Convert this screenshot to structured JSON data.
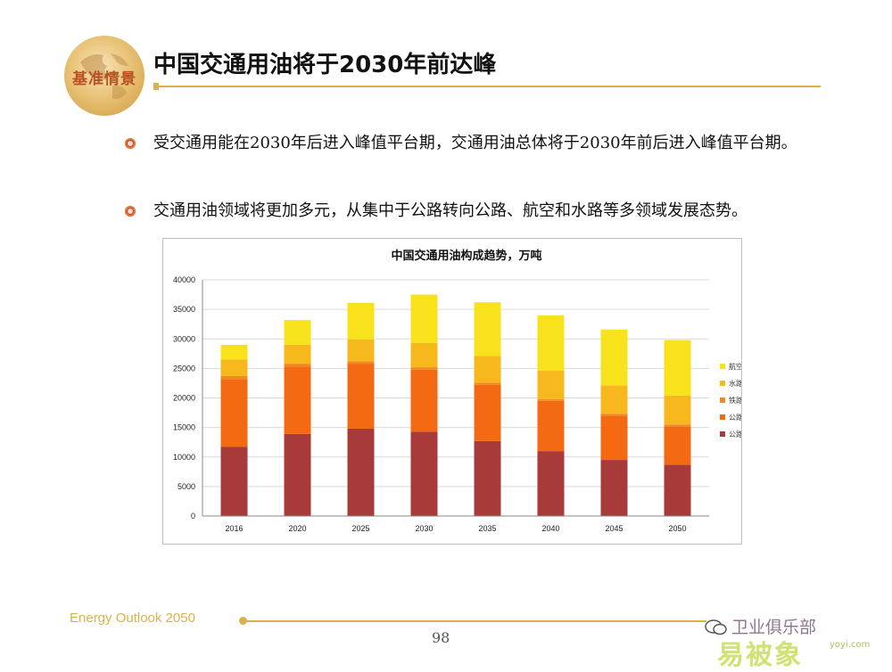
{
  "header": {
    "logo_text": "基准情景",
    "title": "中国交通用油将于2030年前达峰"
  },
  "bullets": [
    "受交通用能在2030年后进入峰值平台期，交通用油总体将于2030年前后进入峰值平台期。",
    "交通用油领域将更加多元，从集中于公路转向公路、航空和水路等多领域发展态势。"
  ],
  "footer": {
    "left_text": "Energy Outlook 2050",
    "page_number": "98",
    "watermark_text": "卫业俱乐部",
    "watermark_brand": "易被象",
    "watermark_url": "yoyi.com"
  },
  "chart_data": {
    "type": "bar",
    "stacked": true,
    "title": "中国交通用油构成趋势，万吨",
    "categories": [
      "2016",
      "2020",
      "2025",
      "2030",
      "2035",
      "2040",
      "2045",
      "2050"
    ],
    "ylim": [
      0,
      40000
    ],
    "yticks": [
      0,
      5000,
      10000,
      15000,
      20000,
      25000,
      30000,
      35000,
      40000
    ],
    "grid": true,
    "legend_position": "right",
    "series": [
      {
        "name": "公路-汽油",
        "color": "#a83a3a",
        "values": [
          11700,
          13900,
          14800,
          14300,
          12700,
          11000,
          9500,
          8700
        ]
      },
      {
        "name": "公路-柴油",
        "color": "#f46a12",
        "values": [
          11500,
          11400,
          11000,
          10500,
          9500,
          8500,
          7500,
          6500
        ]
      },
      {
        "name": "铁路-柴油",
        "color": "#f18a1e",
        "values": [
          500,
          500,
          400,
          400,
          400,
          300,
          300,
          300
        ]
      },
      {
        "name": "水路-油品",
        "color": "#f7b81e",
        "values": [
          2800,
          3200,
          3700,
          4100,
          4500,
          4800,
          4800,
          4900
        ]
      },
      {
        "name": "航空-煤油",
        "color": "#f7e21c",
        "values": [
          2500,
          4200,
          6200,
          8200,
          9100,
          9400,
          9500,
          9400
        ]
      }
    ]
  }
}
